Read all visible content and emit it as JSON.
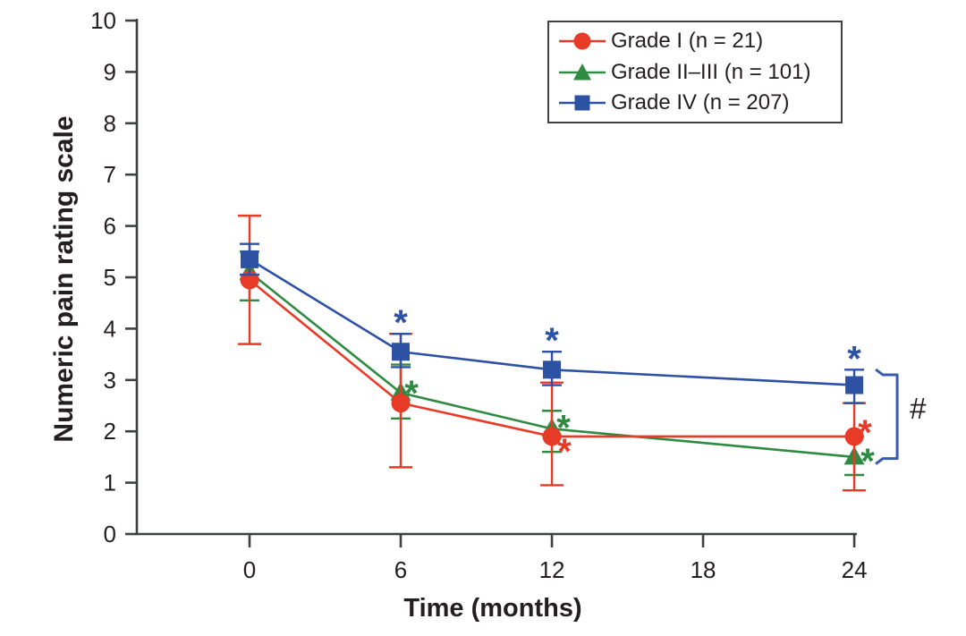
{
  "figure": {
    "background": "#ffffff",
    "axis_color": "#3f4041",
    "text_color": "#231f20",
    "legend_border_color": "#414042"
  },
  "chart_data": {
    "type": "line",
    "title": "",
    "xlabel": "Time (months)",
    "ylabel": "Numeric pain rating scale",
    "x": [
      0,
      6,
      12,
      24
    ],
    "xticks": [
      0,
      6,
      12,
      18,
      24
    ],
    "yticks": [
      0,
      1,
      2,
      3,
      4,
      5,
      6,
      7,
      8,
      9,
      10
    ],
    "xlim": [
      -4.5,
      24
    ],
    "ylim": [
      0,
      10
    ],
    "grid": false,
    "legend_position": "top-right",
    "error_bars": true,
    "series": [
      {
        "id": "grade-i",
        "name": "Grade I (n = 21)",
        "marker": "circle",
        "color": "#e73b28",
        "values": [
          4.95,
          2.55,
          1.9,
          1.9
        ],
        "err_lo": [
          3.7,
          1.3,
          0.95,
          0.85
        ],
        "err_hi": [
          6.2,
          3.9,
          2.95,
          2.55
        ],
        "cap_w": 26,
        "stars": [
          {
            "i": 2,
            "placement": "beside-marker",
            "dx": 14,
            "dy": 8
          },
          {
            "i": 3,
            "placement": "beside-marker",
            "dx": 12,
            "dy": -13
          }
        ]
      },
      {
        "id": "grade-ii-iii",
        "name": "Grade II–III (n = 101)",
        "marker": "triangle",
        "color": "#2f8a42",
        "values": [
          5.1,
          2.75,
          2.05,
          1.5
        ],
        "err_lo": [
          4.55,
          2.25,
          1.6,
          1.15
        ],
        "err_hi": [
          5.5,
          3.3,
          2.4,
          1.9
        ],
        "cap_w": 22,
        "stars": [
          {
            "i": 1,
            "placement": "beside-marker",
            "dx": 12,
            "dy": -8
          },
          {
            "i": 2,
            "placement": "beside-marker",
            "dx": 13,
            "dy": -10
          },
          {
            "i": 3,
            "placement": "beside-marker",
            "dx": 15,
            "dy": -4
          }
        ]
      },
      {
        "id": "grade-iv",
        "name": "Grade IV (n = 207)",
        "marker": "square",
        "color": "#2d51a3",
        "values": [
          5.35,
          3.55,
          3.2,
          2.9
        ],
        "err_lo": [
          5.05,
          3.25,
          2.9,
          2.55
        ],
        "err_hi": [
          5.65,
          3.9,
          3.55,
          3.2
        ],
        "cap_w": 22,
        "stars": [
          {
            "i": 1,
            "placement": "above-error",
            "dx": 0,
            "dy": -21
          },
          {
            "i": 2,
            "placement": "above-error",
            "dx": 0,
            "dy": -21
          },
          {
            "i": 3,
            "placement": "above-error",
            "dx": 0,
            "dy": -21
          }
        ]
      }
    ],
    "annotations": {
      "star_symbol": "*",
      "bracket": {
        "at_x": 24,
        "from_value": 3.1,
        "to_value": 1.47,
        "label": "#",
        "color": "#3a5cb0",
        "label_color": "#231f20"
      }
    }
  }
}
